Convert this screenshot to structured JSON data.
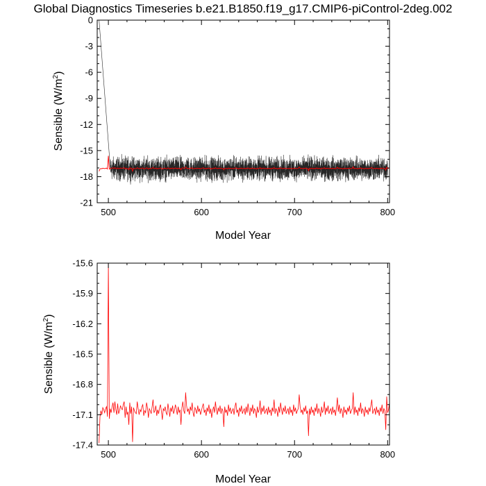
{
  "page": {
    "title": "Global Diagnostics Timeseries b.e21.B1850.f19_g17.CMIP6-piControl-2deg.002"
  },
  "chart_data": [
    {
      "type": "line",
      "panel": "top",
      "xlabel": "Model Year",
      "ylabel": "Sensible (W/m",
      "ylabel_sup": "2",
      "ylabel_close": ")",
      "xlim": [
        488,
        802
      ],
      "ylim": [
        -21,
        0
      ],
      "xticks": [
        500,
        600,
        700,
        800
      ],
      "xtick_labels": [
        "500",
        "600",
        "700",
        "800"
      ],
      "yticks": [
        0,
        -3,
        -6,
        -9,
        -12,
        -15,
        -18,
        -21
      ],
      "ytick_labels": [
        "0",
        "-3",
        "-6",
        "-9",
        "-12",
        "-15",
        "-18",
        "-21"
      ],
      "series": [
        {
          "kind": "monthly",
          "color": "#000000",
          "start_year": 490,
          "end_year": 800,
          "initial_value": 0.0,
          "spinup_end_year": 502,
          "spinup_end_value": -16.9,
          "mean": -17.1,
          "range": [
            -19.2,
            -15.4
          ]
        },
        {
          "kind": "annual",
          "color": "#ff0000",
          "start_year": 490,
          "end_year": 800,
          "values": [
            -17.38,
            -17.12,
            -17.06,
            -17.1,
            -17.03,
            -17.05,
            -17.08,
            -17.04,
            -17.02,
            -17.12,
            -15.6,
            -17.14,
            -17.04,
            -17.08,
            -17.02,
            -16.98,
            -17.08,
            -16.97,
            -17.05,
            -17.1,
            -16.99,
            -17.09,
            -17.06,
            -17.01,
            -17.04,
            -17.05,
            -17.0,
            -16.97,
            -17.13,
            -17.02,
            -17.1,
            -17.07,
            -17.2,
            -16.98,
            -17.09,
            -17.02,
            -17.37,
            -17.03,
            -17.06,
            -17.08,
            -17.09,
            -16.97,
            -17.04,
            -17.1,
            -17.05,
            -17.07,
            -17.02,
            -17.0,
            -17.11,
            -17.06,
            -17.08,
            -16.98,
            -17.03,
            -17.13,
            -17.04,
            -17.06,
            -17.09,
            -17.02,
            -16.95,
            -17.08,
            -17.06,
            -17.01,
            -17.11,
            -17.05,
            -17.09,
            -17.03,
            -17.0,
            -17.07,
            -17.15,
            -17.04,
            -17.06,
            -17.02,
            -17.08,
            -17.1,
            -16.99,
            -17.05,
            -17.12,
            -17.03,
            -17.07,
            -17.01,
            -17.09,
            -17.06,
            -17.0,
            -17.04,
            -17.1,
            -17.02,
            -17.08,
            -17.05,
            -17.2,
            -17.03,
            -16.97,
            -17.06,
            -17.09,
            -16.88,
            -17.01,
            -17.07,
            -17.04,
            -17.1,
            -17.02,
            -17.06,
            -16.98,
            -17.08,
            -17.12,
            -17.03,
            -17.05,
            -17.09,
            -17.01,
            -17.07,
            -17.04,
            -17.1,
            -17.06,
            -17.02,
            -16.99,
            -17.08,
            -17.05,
            -17.11,
            -17.03,
            -17.07,
            -17.0,
            -17.09,
            -17.04,
            -17.13,
            -17.06,
            -17.02,
            -17.08,
            -16.97,
            -17.05,
            -17.1,
            -17.03,
            -17.07,
            -17.01,
            -17.09,
            -17.04,
            -17.06,
            -17.22,
            -17.02,
            -17.08,
            -17.05,
            -17.11,
            -17.0,
            -17.07,
            -17.03,
            -17.09,
            -17.06,
            -17.04,
            -17.1,
            -17.02,
            -16.98,
            -17.08,
            -17.05,
            -17.12,
            -17.03,
            -17.07,
            -17.01,
            -17.09,
            -17.06,
            -17.04,
            -17.1,
            -17.02,
            -17.08,
            -16.99,
            -17.05,
            -17.11,
            -17.03,
            -17.07,
            -17.0,
            -17.09,
            -17.04,
            -17.06,
            -17.13,
            -17.02,
            -17.08,
            -17.05,
            -16.96,
            -17.1,
            -17.03,
            -17.07,
            -17.01,
            -17.09,
            -17.06,
            -17.04,
            -17.1,
            -17.02,
            -17.08,
            -17.05,
            -17.11,
            -17.03,
            -17.07,
            -16.95,
            -17.09,
            -17.04,
            -17.06,
            -17.12,
            -17.02,
            -17.08,
            -16.98,
            -17.05,
            -17.1,
            -17.03,
            -17.07,
            -17.01,
            -17.09,
            -17.06,
            -17.04,
            -17.1,
            -17.02,
            -17.08,
            -17.05,
            -17.11,
            -17.0,
            -17.07,
            -17.03,
            -17.09,
            -17.06,
            -17.04,
            -16.9,
            -17.02,
            -17.08,
            -17.05,
            -17.1,
            -17.03,
            -17.07,
            -17.01,
            -17.09,
            -17.06,
            -17.31,
            -17.04,
            -17.1,
            -17.02,
            -17.08,
            -17.05,
            -17.11,
            -17.03,
            -17.07,
            -16.99,
            -17.09,
            -17.04,
            -17.06,
            -17.12,
            -17.02,
            -17.08,
            -17.05,
            -16.97,
            -17.1,
            -17.03,
            -17.07,
            -17.01,
            -17.09,
            -17.06,
            -17.04,
            -17.1,
            -17.02,
            -17.08,
            -17.05,
            -17.11,
            -17.03,
            -16.93,
            -17.07,
            -17.0,
            -17.09,
            -17.04,
            -17.06,
            -17.13,
            -17.02,
            -17.08,
            -17.05,
            -17.1,
            -17.03,
            -17.07,
            -17.01,
            -17.09,
            -17.06,
            -17.04,
            -16.88,
            -17.1,
            -17.02,
            -17.08,
            -17.05,
            -17.11,
            -17.03,
            -17.07,
            -16.98,
            -17.09,
            -17.04,
            -17.06,
            -17.12,
            -17.02,
            -17.08,
            -17.05,
            -17.1,
            -17.03,
            -17.07,
            -17.01,
            -16.95,
            -17.09,
            -17.06,
            -17.04,
            -17.1,
            -17.02,
            -17.08,
            -17.05,
            -17.11,
            -17.03,
            -17.07,
            -17.0,
            -17.09,
            -17.04,
            -17.06,
            -17.25,
            -16.92,
            -17.08,
            -17.05,
            -16.98
          ]
        }
      ]
    },
    {
      "type": "line",
      "panel": "bottom",
      "xlabel": "Model Year",
      "ylabel": "Sensible (W/m",
      "ylabel_sup": "2",
      "ylabel_close": ")",
      "xlim": [
        488,
        802
      ],
      "ylim": [
        -17.4,
        -15.6
      ],
      "xticks": [
        500,
        600,
        700,
        800
      ],
      "xtick_labels": [
        "500",
        "600",
        "700",
        "800"
      ],
      "yticks": [
        -15.6,
        -15.9,
        -16.2,
        -16.5,
        -16.8,
        -17.1,
        -17.4
      ],
      "ytick_labels": [
        "-15.6",
        "-15.9",
        "-16.2",
        "-16.5",
        "-16.8",
        "-17.1",
        "-17.4"
      ],
      "series": [
        {
          "kind": "annual",
          "color": "#ff0000",
          "start_year": 490,
          "end_year": 800,
          "same_as_top_annual": true
        }
      ]
    }
  ]
}
